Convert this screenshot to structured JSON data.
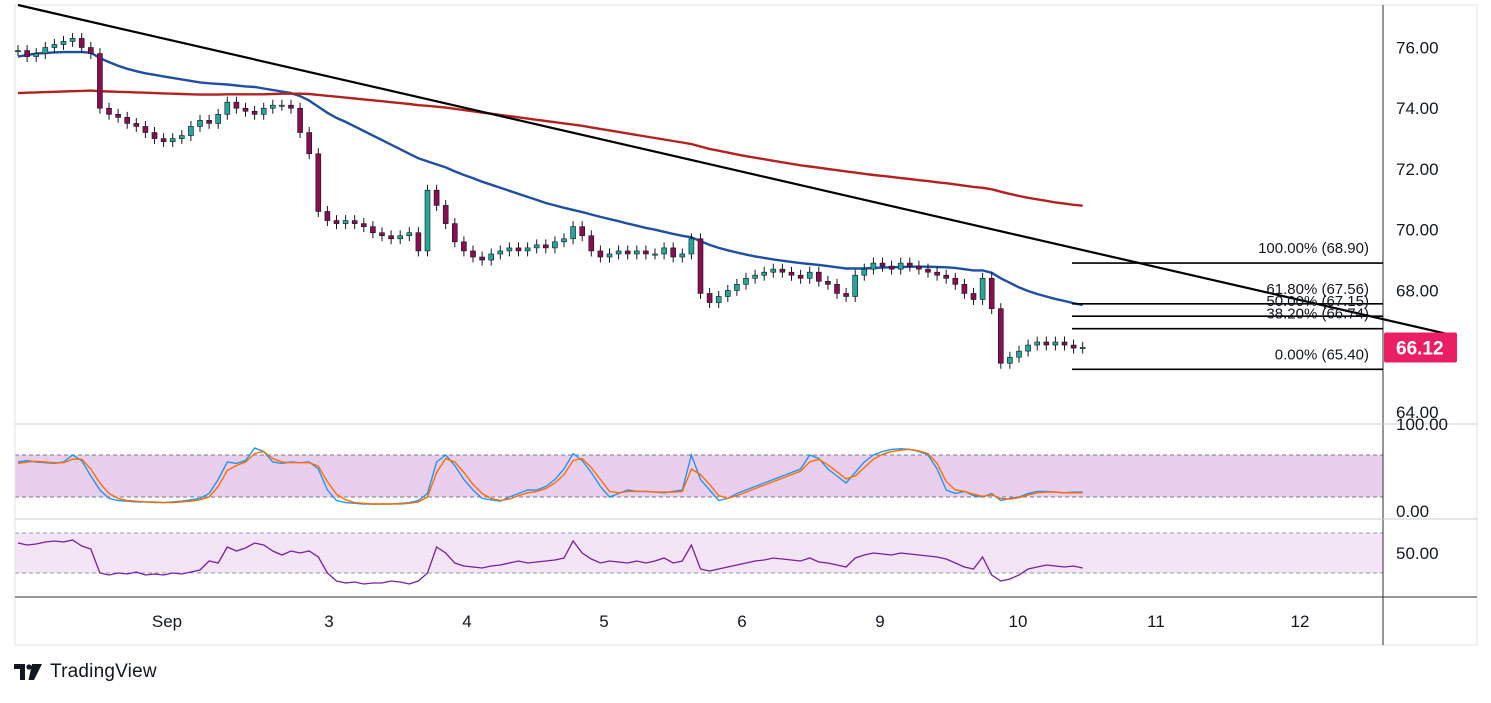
{
  "brand": {
    "name": "TradingView",
    "logo_icon": "tradingview-logo-icon"
  },
  "colors": {
    "bull": "#26a69a",
    "bear": "#880e4f",
    "candle_outline": "#131722",
    "ema_blue": "#1e4fa3",
    "ema_red": "#b22222",
    "trendline": "#000000",
    "fib": "#000000",
    "price_badge": "#e91e63",
    "stoch_k": "#2196f3",
    "stoch_d": "#ff6d00",
    "stoch_band": "#e1bee7",
    "rsi": "#7b1fa2",
    "rsi_band": "#f3e5f5"
  },
  "price_badge": {
    "value": "66.12"
  },
  "chart_data": [
    {
      "type": "candlestick",
      "ylim": [
        63.6,
        77.4
      ],
      "y_ticks": [
        "76.00",
        "74.00",
        "72.00",
        "70.00",
        "68.00",
        "64.00"
      ],
      "x_ticks": [
        "Sep",
        "3",
        "4",
        "5",
        "6",
        "9",
        "10",
        "11",
        "12"
      ],
      "close": [
        75.9,
        75.7,
        75.8,
        76.0,
        76.1,
        76.2,
        76.3,
        76.0,
        75.8,
        74.0,
        73.8,
        73.7,
        73.5,
        73.4,
        73.2,
        73.0,
        72.9,
        73.0,
        73.1,
        73.4,
        73.6,
        73.5,
        73.8,
        74.2,
        74.0,
        73.9,
        73.8,
        74.0,
        74.1,
        74.1,
        74.0,
        73.2,
        72.5,
        70.6,
        70.3,
        70.2,
        70.3,
        70.2,
        70.1,
        69.9,
        69.8,
        69.7,
        69.8,
        69.9,
        69.3,
        71.3,
        70.8,
        70.2,
        69.6,
        69.3,
        69.1,
        69.0,
        69.2,
        69.3,
        69.4,
        69.3,
        69.4,
        69.5,
        69.4,
        69.6,
        69.7,
        70.1,
        69.8,
        69.3,
        69.1,
        69.2,
        69.3,
        69.2,
        69.3,
        69.2,
        69.2,
        69.4,
        69.1,
        69.2,
        69.7,
        67.9,
        67.6,
        67.8,
        68.0,
        68.2,
        68.4,
        68.5,
        68.6,
        68.7,
        68.6,
        68.5,
        68.4,
        68.6,
        68.3,
        68.2,
        67.9,
        67.8,
        68.5,
        68.7,
        68.9,
        68.8,
        68.7,
        68.9,
        68.8,
        68.7,
        68.6,
        68.5,
        68.4,
        68.2,
        67.9,
        67.7,
        68.4,
        67.4,
        65.6,
        65.8,
        66.0,
        66.2,
        66.3,
        66.2,
        66.3,
        66.2,
        66.1,
        66.12
      ],
      "series": [
        {
          "name": "",
          "kind": "ema",
          "values": [
            75.7,
            75.75,
            75.8,
            75.82,
            75.84,
            75.85,
            75.85,
            75.85,
            75.83,
            75.65,
            75.52,
            75.4,
            75.3,
            75.22,
            75.15,
            75.1,
            75.05,
            75.0,
            74.95,
            74.9,
            74.85,
            74.82,
            74.8,
            74.78,
            74.75,
            74.72,
            74.7,
            74.65,
            74.6,
            74.55,
            74.5,
            74.4,
            74.25,
            74.05,
            73.85,
            73.68,
            73.55,
            73.4,
            73.25,
            73.1,
            72.95,
            72.8,
            72.65,
            72.5,
            72.35,
            72.25,
            72.15,
            72.05,
            71.92,
            71.8,
            71.7,
            71.58,
            71.48,
            71.38,
            71.28,
            71.18,
            71.08,
            70.98,
            70.88,
            70.8,
            70.72,
            70.65,
            70.58,
            70.5,
            70.42,
            70.35,
            70.28,
            70.2,
            70.13,
            70.06,
            70.0,
            69.93,
            69.86,
            69.8,
            69.75,
            69.62,
            69.5,
            69.4,
            69.32,
            69.25,
            69.18,
            69.12,
            69.07,
            69.02,
            68.98,
            68.94,
            68.9,
            68.87,
            68.84,
            68.8,
            68.76,
            68.72,
            68.72,
            68.72,
            68.74,
            68.75,
            68.76,
            68.77,
            68.78,
            68.78,
            68.78,
            68.77,
            68.76,
            68.74,
            68.7,
            68.66,
            68.66,
            68.58,
            68.4,
            68.25,
            68.1,
            67.98,
            67.88,
            67.8,
            67.72,
            67.65,
            67.58,
            67.52
          ]
        },
        {
          "name": "",
          "kind": "ema",
          "values": [
            74.5,
            74.51,
            74.52,
            74.53,
            74.54,
            74.55,
            74.56,
            74.57,
            74.58,
            74.56,
            74.55,
            74.54,
            74.53,
            74.52,
            74.51,
            74.5,
            74.49,
            74.48,
            74.47,
            74.46,
            74.45,
            74.45,
            74.45,
            74.46,
            74.46,
            74.46,
            74.46,
            74.46,
            74.47,
            74.48,
            74.48,
            74.48,
            74.47,
            74.44,
            74.41,
            74.38,
            74.35,
            74.32,
            74.29,
            74.26,
            74.23,
            74.2,
            74.17,
            74.14,
            74.1,
            74.08,
            74.05,
            74.02,
            73.98,
            73.94,
            73.9,
            73.86,
            73.82,
            73.78,
            73.74,
            73.7,
            73.66,
            73.62,
            73.58,
            73.54,
            73.5,
            73.46,
            73.42,
            73.37,
            73.32,
            73.27,
            73.22,
            73.17,
            73.12,
            73.07,
            73.02,
            72.97,
            72.92,
            72.87,
            72.82,
            72.74,
            72.66,
            72.6,
            72.54,
            72.48,
            72.42,
            72.37,
            72.32,
            72.27,
            72.22,
            72.17,
            72.12,
            72.08,
            72.04,
            72.0,
            71.96,
            71.92,
            71.88,
            71.84,
            71.8,
            71.77,
            71.74,
            71.7,
            71.67,
            71.63,
            71.6,
            71.56,
            71.53,
            71.49,
            71.45,
            71.41,
            71.38,
            71.33,
            71.25,
            71.18,
            71.11,
            71.05,
            71.0,
            70.95,
            70.9,
            70.86,
            70.82,
            70.79
          ]
        }
      ],
      "fib_levels": [
        {
          "label": "100.00% (68.90)",
          "value": 68.9
        },
        {
          "label": "61.80% (67.56)",
          "value": 67.56
        },
        {
          "label": "50.00% (67.15)",
          "value": 67.15
        },
        {
          "label": "38.20% (66.74)",
          "value": 66.74
        },
        {
          "label": "0.00% (65.40)",
          "value": 65.4
        }
      ],
      "trendline": {
        "start": [
          0,
          77.4
        ],
        "end": [
          158,
          66.5
        ]
      }
    },
    {
      "type": "line",
      "y_ticks": [
        "100.00",
        "0.00"
      ],
      "ylim": [
        0,
        100
      ],
      "band": [
        20,
        80
      ],
      "series": [
        {
          "name": "",
          "values": [
            70,
            72,
            70,
            69,
            68,
            70,
            80,
            72,
            50,
            30,
            18,
            15,
            14,
            13,
            13,
            12,
            12,
            13,
            14,
            16,
            18,
            25,
            45,
            70,
            68,
            72,
            90,
            85,
            70,
            68,
            70,
            69,
            70,
            60,
            30,
            15,
            12,
            11,
            10,
            10,
            10,
            10,
            11,
            12,
            15,
            25,
            70,
            80,
            65,
            45,
            30,
            18,
            16,
            14,
            20,
            25,
            30,
            30,
            35,
            45,
            60,
            82,
            72,
            55,
            35,
            20,
            25,
            30,
            28,
            28,
            27,
            26,
            28,
            30,
            80,
            45,
            30,
            15,
            18,
            25,
            30,
            35,
            40,
            45,
            50,
            55,
            60,
            80,
            75,
            60,
            50,
            40,
            55,
            70,
            80,
            85,
            88,
            89,
            88,
            85,
            80,
            60,
            30,
            25,
            28,
            22,
            20,
            25,
            15,
            18,
            20,
            25,
            28,
            28,
            27,
            26,
            27,
            27
          ]
        },
        {
          "name": "",
          "values": [
            68,
            70,
            71,
            70,
            69,
            69,
            74,
            74,
            60,
            40,
            25,
            18,
            15,
            14,
            13,
            13,
            12,
            12,
            13,
            14,
            16,
            20,
            35,
            58,
            65,
            70,
            82,
            85,
            75,
            70,
            69,
            69,
            69,
            64,
            42,
            24,
            16,
            12,
            11,
            10,
            10,
            10,
            10,
            11,
            13,
            20,
            55,
            75,
            70,
            55,
            38,
            25,
            18,
            15,
            17,
            22,
            26,
            28,
            32,
            40,
            52,
            72,
            75,
            62,
            45,
            28,
            26,
            28,
            28,
            28,
            27,
            27,
            27,
            28,
            60,
            52,
            38,
            22,
            18,
            22,
            27,
            32,
            37,
            42,
            47,
            52,
            57,
            70,
            74,
            66,
            56,
            46,
            50,
            62,
            74,
            81,
            85,
            87,
            88,
            86,
            82,
            68,
            42,
            30,
            28,
            24,
            21,
            23,
            18,
            17,
            19,
            23,
            26,
            27,
            27,
            26,
            26,
            26
          ]
        }
      ]
    },
    {
      "type": "line",
      "y_ticks": [
        "50.00"
      ],
      "ylim": [
        10,
        80
      ],
      "band": [
        30,
        70
      ],
      "series": [
        {
          "name": "",
          "values": [
            60,
            58,
            59,
            61,
            62,
            61,
            63,
            57,
            54,
            30,
            28,
            30,
            29,
            31,
            28,
            29,
            28,
            30,
            29,
            31,
            33,
            42,
            40,
            56,
            52,
            55,
            60,
            58,
            52,
            48,
            52,
            50,
            52,
            46,
            30,
            22,
            20,
            21,
            19,
            20,
            20,
            22,
            21,
            19,
            22,
            30,
            56,
            50,
            40,
            37,
            36,
            35,
            37,
            38,
            40,
            42,
            40,
            41,
            42,
            43,
            45,
            62,
            50,
            44,
            40,
            42,
            41,
            40,
            42,
            40,
            42,
            45,
            40,
            42,
            58,
            34,
            32,
            34,
            36,
            38,
            40,
            42,
            43,
            45,
            44,
            43,
            42,
            45,
            41,
            40,
            38,
            36,
            45,
            48,
            50,
            49,
            48,
            50,
            49,
            48,
            47,
            46,
            44,
            40,
            36,
            34,
            46,
            28,
            22,
            24,
            28,
            34,
            36,
            38,
            37,
            36,
            37,
            35
          ]
        }
      ]
    }
  ]
}
